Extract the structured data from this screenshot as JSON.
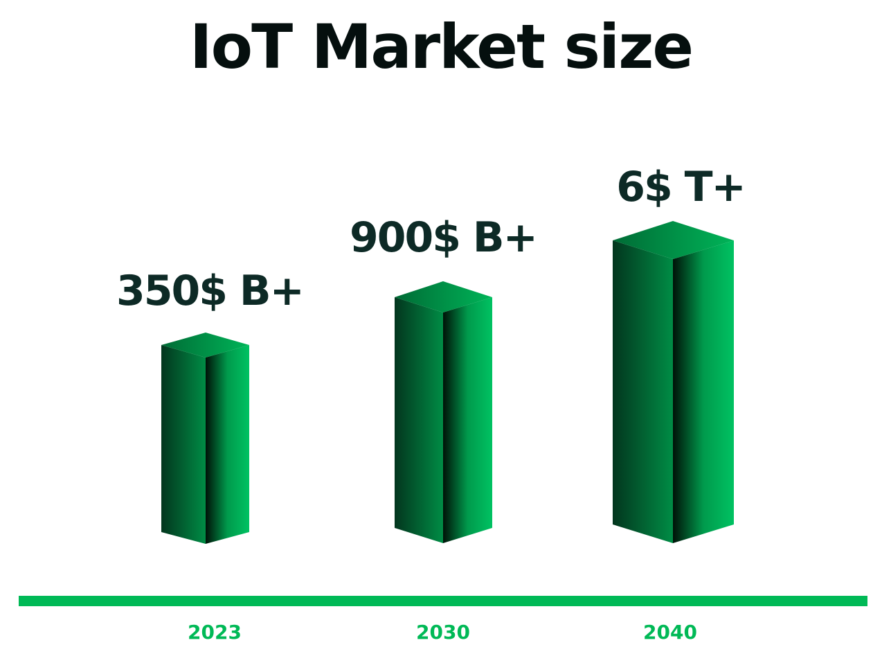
{
  "title": "IoT Market size",
  "items": [
    {
      "label": "350$ B+",
      "year": "2023"
    },
    {
      "label": "900$ B+",
      "year": "2030"
    },
    {
      "label": "6$ T+",
      "year": "2040"
    }
  ]
}
